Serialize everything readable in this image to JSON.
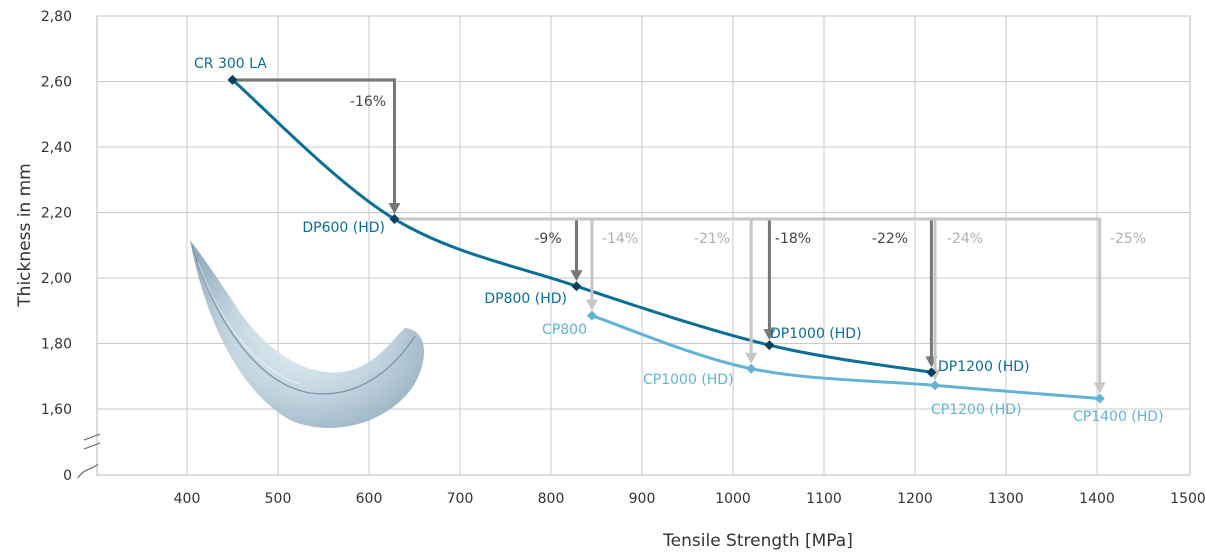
{
  "chart_data": {
    "type": "line",
    "xlabel": "Tensile Strength [MPa]",
    "ylabel": "Thickness in mm",
    "xlim": [
      300,
      1500
    ],
    "ylim": [
      1.5,
      2.8
    ],
    "y_break_tick": "0",
    "x_ticks": [
      "400",
      "500",
      "600",
      "700",
      "800",
      "900",
      "1000",
      "1100",
      "1200",
      "1300",
      "1400",
      "1500"
    ],
    "y_ticks": [
      "2,80",
      "2,60",
      "2,40",
      "2,20",
      "2,00",
      "1,80",
      "1,60"
    ],
    "grid": true,
    "colors": {
      "dp": "#0a6e96",
      "dp_marker": "#0b3f5c",
      "cp": "#62b3d6",
      "arrow_dark": "#777777",
      "arrow_light": "#c6c6c6",
      "pct_dark": "#444444",
      "pct_light": "#b0b0b0"
    },
    "series": [
      {
        "points": [
          {
            "label": "CR 300 LA",
            "x": 450,
            "y": 2.605
          },
          {
            "label": "DP600 (HD)",
            "x": 628,
            "y": 2.18
          },
          {
            "label": "DP800 (HD)",
            "x": 828,
            "y": 1.975
          },
          {
            "label": "DP1000 (HD)",
            "x": 1040,
            "y": 1.795
          },
          {
            "label": "DP1200 (HD)",
            "x": 1218,
            "y": 1.712
          }
        ]
      },
      {
        "points": [
          {
            "label": "CP800",
            "x": 845,
            "y": 1.885
          },
          {
            "label": "CP1000 (HD)",
            "x": 1020,
            "y": 1.723
          },
          {
            "label": "CP1200 (HD)",
            "x": 1222,
            "y": 1.672
          },
          {
            "label": "CP1400 (HD)",
            "x": 1403,
            "y": 1.632
          }
        ]
      }
    ],
    "reductions": [
      {
        "label": "-16%",
        "from_x": 450,
        "from_y": 2.605,
        "to_x": 628,
        "to_y": 2.18,
        "shade": "dark"
      },
      {
        "label": "-9%",
        "from_x": 628,
        "from_y": 2.18,
        "to_x": 828,
        "to_y": 1.975,
        "shade": "dark"
      },
      {
        "label": "-14%",
        "from_x": 628,
        "from_y": 2.18,
        "to_x": 845,
        "to_y": 1.885,
        "shade": "light"
      },
      {
        "label": "-21%",
        "from_x": 628,
        "from_y": 2.18,
        "to_x": 1020,
        "to_y": 1.723,
        "shade": "light"
      },
      {
        "label": "-18%",
        "from_x": 628,
        "from_y": 2.18,
        "to_x": 1040,
        "to_y": 1.795,
        "shade": "dark"
      },
      {
        "label": "-22%",
        "from_x": 628,
        "from_y": 2.18,
        "to_x": 1218,
        "to_y": 1.712,
        "shade": "dark"
      },
      {
        "label": "-24%",
        "from_x": 628,
        "from_y": 2.18,
        "to_x": 1222,
        "to_y": 1.672,
        "shade": "light"
      },
      {
        "label": "-25%",
        "from_x": 628,
        "from_y": 2.18,
        "to_x": 1403,
        "to_y": 1.632,
        "shade": "light"
      }
    ]
  }
}
